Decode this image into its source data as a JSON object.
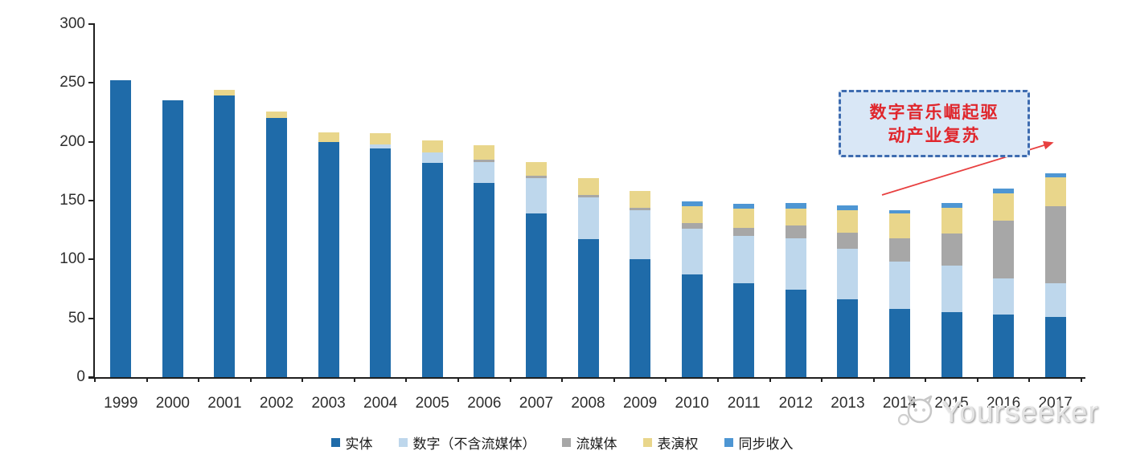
{
  "chart_data": {
    "type": "bar",
    "stacked": true,
    "title": "",
    "xlabel": "",
    "ylabel": "",
    "ylim": [
      0,
      300
    ],
    "y_ticks": [
      0,
      50,
      100,
      150,
      200,
      250,
      300
    ],
    "grid": false,
    "legend_position": "bottom",
    "categories": [
      "1999",
      "2000",
      "2001",
      "2002",
      "2003",
      "2004",
      "2005",
      "2006",
      "2007",
      "2008",
      "2009",
      "2010",
      "2011",
      "2012",
      "2013",
      "2014",
      "2015",
      "2016",
      "2017"
    ],
    "series": [
      {
        "name": "实体",
        "color": "#1f6ba9",
        "values": [
          252,
          235,
          239,
          220,
          200,
          194,
          182,
          165,
          139,
          117,
          100,
          87,
          80,
          74,
          66,
          58,
          55,
          53,
          51
        ]
      },
      {
        "name": "数字（不含流媒体）",
        "color": "#bed7ec",
        "values": [
          0,
          0,
          0,
          0,
          0,
          4,
          9,
          18,
          30,
          36,
          42,
          39,
          40,
          44,
          43,
          40,
          40,
          31,
          29
        ]
      },
      {
        "name": "流媒体",
        "color": "#a7a7a7",
        "values": [
          0,
          0,
          0,
          0,
          0,
          0,
          0,
          2,
          2,
          2,
          2,
          5,
          7,
          11,
          14,
          20,
          27,
          49,
          65
        ]
      },
      {
        "name": "表演权",
        "color": "#e9d68b",
        "values": [
          0,
          0,
          5,
          6,
          8,
          9,
          10,
          12,
          12,
          14,
          14,
          14,
          16,
          14,
          19,
          21,
          22,
          23,
          25
        ]
      },
      {
        "name": "同步收入",
        "color": "#4e96d3",
        "values": [
          0,
          0,
          0,
          0,
          0,
          0,
          0,
          0,
          0,
          0,
          0,
          4,
          4,
          5,
          4,
          3,
          4,
          4,
          3
        ]
      }
    ]
  },
  "annotation": {
    "line1": "数字音乐崛起驱",
    "line2": "动产业复苏",
    "text_color": "#e0262c",
    "box_fill": "#d9e7f6",
    "border_color": "#3e6cb0",
    "arrow_color": "#e84040"
  },
  "watermark": {
    "text": "Yourseeker"
  }
}
